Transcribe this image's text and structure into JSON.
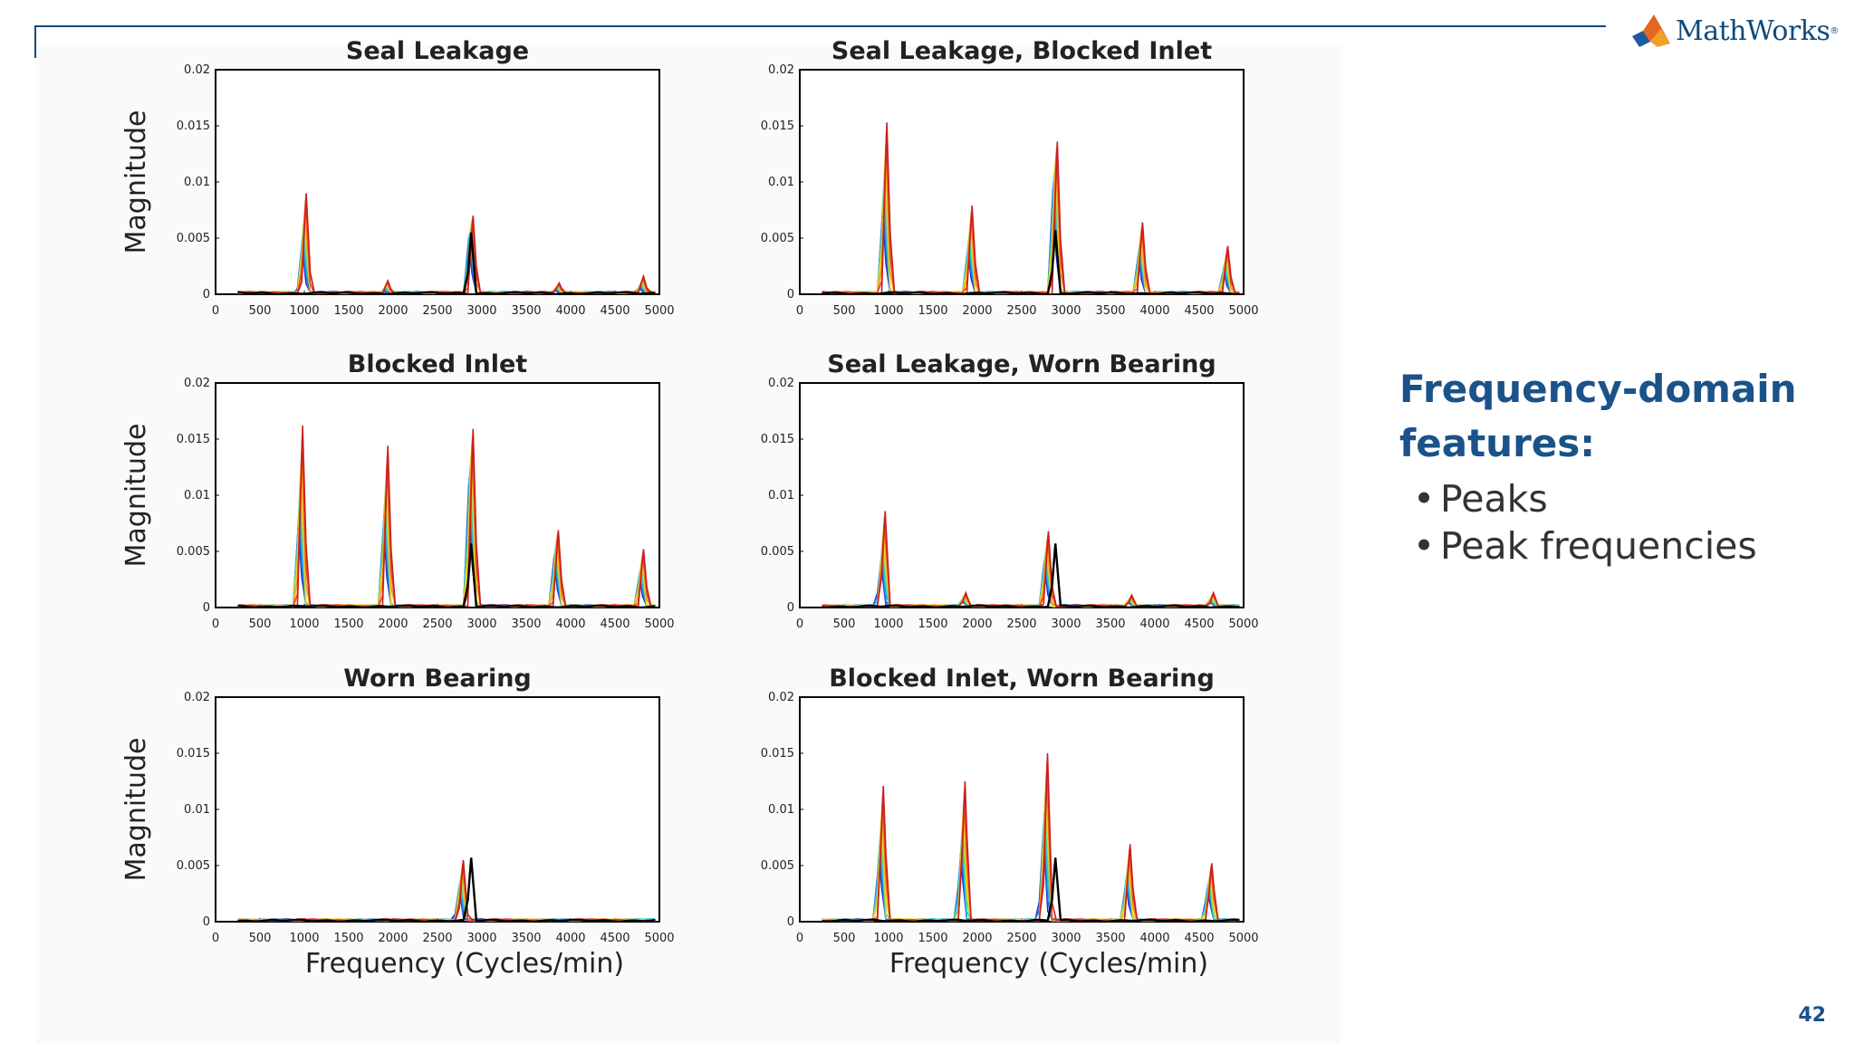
{
  "slide": {
    "brand": "MathWorks",
    "feature_title": "Frequency-domain features:",
    "bullets": [
      "Peaks",
      "Peak frequencies"
    ],
    "page_number": "42",
    "accent_color": "#1a5289",
    "line_color": "#0e4a7f"
  },
  "chart_data": [
    {
      "type": "line",
      "title": "Seal Leakage",
      "xlabel": "",
      "ylabel": "Magnitude",
      "xlim": [
        0,
        5000
      ],
      "ylim": [
        0,
        0.02
      ],
      "xticks": [
        "0",
        "500",
        "1000",
        "1500",
        "2000",
        "2500",
        "3000",
        "3500",
        "4000",
        "4500",
        "5000"
      ],
      "yticks": [
        "0",
        "0.005",
        "0.01",
        "0.015",
        "0.02"
      ],
      "baseline_peaks": [
        {
          "x": 2880,
          "y": 0.0055
        }
      ],
      "peaks": [
        {
          "x": 1000,
          "max": 0.009,
          "min": 0.0045
        },
        {
          "x": 2880,
          "max": 0.007,
          "min": 0.005
        },
        {
          "x": 1920,
          "max": 0.0012,
          "min": 0.0003
        },
        {
          "x": 3850,
          "max": 0.001,
          "min": 0.0004
        },
        {
          "x": 4800,
          "max": 0.0016,
          "min": 0.0006
        }
      ]
    },
    {
      "type": "line",
      "title": "Seal Leakage, Blocked Inlet",
      "xlabel": "",
      "ylabel": "",
      "xlim": [
        0,
        5000
      ],
      "ylim": [
        0,
        0.02
      ],
      "xticks": [
        "0",
        "500",
        "1000",
        "1500",
        "2000",
        "2500",
        "3000",
        "3500",
        "4000",
        "4500",
        "5000"
      ],
      "yticks": [
        "0",
        "0.005",
        "0.01",
        "0.015",
        "0.02"
      ],
      "baseline_peaks": [
        {
          "x": 2880,
          "y": 0.0057
        }
      ],
      "peaks": [
        {
          "x": 960,
          "max": 0.0153,
          "min": 0.0075
        },
        {
          "x": 1920,
          "max": 0.0079,
          "min": 0.004
        },
        {
          "x": 2880,
          "max": 0.0136,
          "min": 0.0095
        },
        {
          "x": 3840,
          "max": 0.0064,
          "min": 0.0035
        },
        {
          "x": 4800,
          "max": 0.0043,
          "min": 0.0022
        }
      ]
    },
    {
      "type": "line",
      "title": "Blocked Inlet",
      "xlabel": "",
      "ylabel": "Magnitude",
      "xlim": [
        0,
        5000
      ],
      "ylim": [
        0,
        0.02
      ],
      "xticks": [
        "0",
        "500",
        "1000",
        "1500",
        "2000",
        "2500",
        "3000",
        "3500",
        "4000",
        "4500",
        "5000"
      ],
      "yticks": [
        "0",
        "0.005",
        "0.01",
        "0.015",
        "0.02"
      ],
      "baseline_peaks": [
        {
          "x": 2880,
          "y": 0.0057
        }
      ],
      "peaks": [
        {
          "x": 960,
          "max": 0.0162,
          "min": 0.0075
        },
        {
          "x": 1920,
          "max": 0.0144,
          "min": 0.0075
        },
        {
          "x": 2880,
          "max": 0.0159,
          "min": 0.011
        },
        {
          "x": 3840,
          "max": 0.0069,
          "min": 0.0045
        },
        {
          "x": 4800,
          "max": 0.0052,
          "min": 0.0028
        }
      ]
    },
    {
      "type": "line",
      "title": "Seal Leakage, Worn Bearing",
      "xlabel": "",
      "ylabel": "",
      "xlim": [
        0,
        5000
      ],
      "ylim": [
        0,
        0.02
      ],
      "xticks": [
        "0",
        "500",
        "1000",
        "1500",
        "2000",
        "2500",
        "3000",
        "3500",
        "4000",
        "4500",
        "5000"
      ],
      "yticks": [
        "0",
        "0.005",
        "0.01",
        "0.015",
        "0.02"
      ],
      "baseline_peaks": [
        {
          "x": 2880,
          "y": 0.0057
        }
      ],
      "peaks": [
        {
          "x": 940,
          "max": 0.0086,
          "min": 0.004
        },
        {
          "x": 2780,
          "max": 0.0068,
          "min": 0.004
        },
        {
          "x": 1850,
          "max": 0.0013,
          "min": 0.0006
        },
        {
          "x": 3720,
          "max": 0.0011,
          "min": 0.0005
        },
        {
          "x": 4640,
          "max": 0.0013,
          "min": 0.0006
        }
      ]
    },
    {
      "type": "line",
      "title": "Worn Bearing",
      "xlabel": "Frequency (Cycles/min)",
      "ylabel": "Magnitude",
      "xlim": [
        0,
        5000
      ],
      "ylim": [
        0,
        0.02
      ],
      "xticks": [
        "0",
        "500",
        "1000",
        "1500",
        "2000",
        "2500",
        "3000",
        "3500",
        "4000",
        "4500",
        "5000"
      ],
      "yticks": [
        "0",
        "0.005",
        "0.01",
        "0.015",
        "0.02"
      ],
      "baseline_peaks": [
        {
          "x": 2880,
          "y": 0.0057
        }
      ],
      "peaks": [
        {
          "x": 2770,
          "max": 0.0055,
          "min": 0.003
        }
      ]
    },
    {
      "type": "line",
      "title": "Blocked Inlet, Worn Bearing",
      "xlabel": "Frequency (Cycles/min)",
      "ylabel": "",
      "xlim": [
        0,
        5000
      ],
      "ylim": [
        0,
        0.02
      ],
      "xticks": [
        "0",
        "500",
        "1000",
        "1500",
        "2000",
        "2500",
        "3000",
        "3500",
        "4000",
        "4500",
        "5000"
      ],
      "yticks": [
        "0",
        "0.005",
        "0.01",
        "0.015",
        "0.02"
      ],
      "baseline_peaks": [
        {
          "x": 2880,
          "y": 0.0057
        }
      ],
      "peaks": [
        {
          "x": 920,
          "max": 0.0121,
          "min": 0.006
        },
        {
          "x": 1840,
          "max": 0.0125,
          "min": 0.006
        },
        {
          "x": 2770,
          "max": 0.015,
          "min": 0.008
        },
        {
          "x": 3700,
          "max": 0.0069,
          "min": 0.0035
        },
        {
          "x": 4620,
          "max": 0.0052,
          "min": 0.003
        }
      ]
    }
  ],
  "series_colors": [
    "#2233cc",
    "#1f6fe0",
    "#1fb0e8",
    "#33ccb4",
    "#a8d641",
    "#f2d62a",
    "#f59a1a",
    "#e8461e",
    "#c81e1e"
  ],
  "baseline_color": "#000000"
}
